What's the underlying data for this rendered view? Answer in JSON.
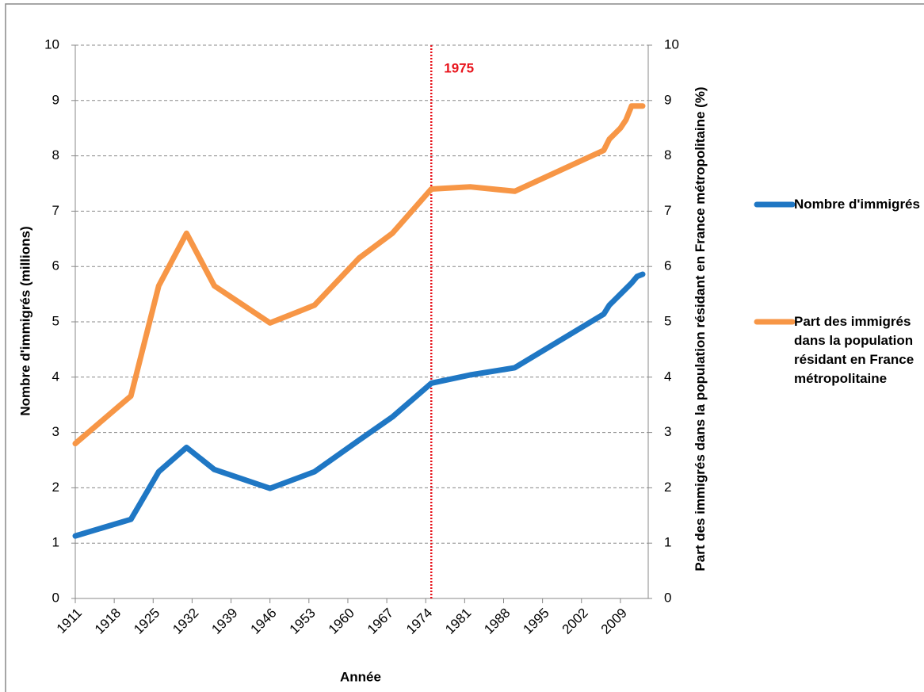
{
  "chart_data": {
    "type": "line",
    "xlabel": "Année",
    "ylabel": "Nombre d'immigrés (millions)",
    "y2label": "Part des immigrés dans la population résidant en France métropolitaine (%)",
    "x": [
      1911,
      1921,
      1926,
      1931,
      1936,
      1946,
      1954,
      1962,
      1968,
      1975,
      1982,
      1990,
      2006,
      2007,
      2008,
      2009,
      2010,
      2011,
      2012,
      2013
    ],
    "series": [
      {
        "name": "Nombre d'immigrés",
        "color": "#1f77c4",
        "values": [
          1.13,
          1.43,
          2.29,
          2.73,
          2.33,
          1.99,
          2.29,
          2.86,
          3.28,
          3.89,
          4.04,
          4.17,
          5.14,
          5.3,
          5.4,
          5.5,
          5.6,
          5.7,
          5.82,
          5.86
        ]
      },
      {
        "name": "Part des immigrés dans la population résidant en France métropolitaine",
        "color": "#f79646",
        "axis": "y2",
        "values": [
          2.8,
          3.66,
          5.65,
          6.6,
          5.65,
          4.98,
          5.3,
          6.15,
          6.6,
          7.4,
          7.44,
          7.36,
          8.1,
          8.3,
          8.4,
          8.5,
          8.65,
          8.9,
          8.9,
          8.9
        ]
      }
    ],
    "xlim": [
      1911,
      2014
    ],
    "xticks": [
      1911,
      1918,
      1925,
      1932,
      1939,
      1946,
      1953,
      1960,
      1967,
      1974,
      1981,
      1988,
      1995,
      2002,
      2009
    ],
    "ylim": [
      0,
      10
    ],
    "yticks": [
      0,
      1,
      2,
      3,
      4,
      5,
      6,
      7,
      8,
      9,
      10
    ],
    "y2lim": [
      0,
      10
    ],
    "y2ticks": [
      0,
      1,
      2,
      3,
      4,
      5,
      6,
      7,
      8,
      9,
      10
    ],
    "grid": true,
    "legend": "right",
    "annotations": [
      {
        "text": "1975",
        "x": 1975,
        "color": "#e8141c"
      }
    ]
  }
}
